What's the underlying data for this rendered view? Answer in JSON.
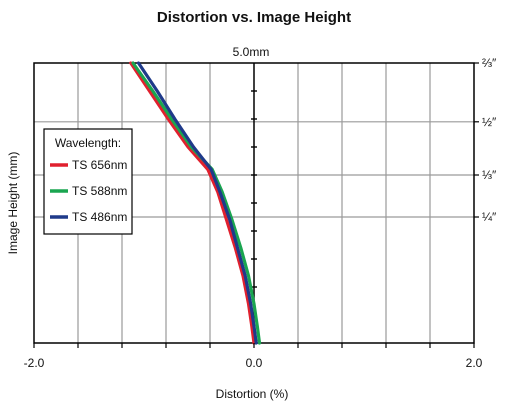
{
  "chart_data": {
    "type": "line",
    "title": "Distortion vs. Image Height",
    "top_label": "5.0mm",
    "xlabel": "Distortion (%)",
    "ylabel": "Image Height (mm)",
    "xlim": [
      -2.0,
      2.0
    ],
    "ylim": [
      0,
      5.0
    ],
    "x_tick_labels": [
      {
        "value": -2.0,
        "label": "-2.0"
      },
      {
        "value": 0.0,
        "label": "0.0"
      },
      {
        "value": 2.0,
        "label": "2.0"
      }
    ],
    "right_tick_labels": [
      {
        "value": 5.0,
        "label": "⅔″"
      },
      {
        "value": 3.95,
        "label": "½″"
      },
      {
        "value": 3.0,
        "label": "⅓″"
      },
      {
        "value": 2.25,
        "label": "¼″"
      }
    ],
    "grid": true,
    "legend": {
      "title": "Wavelength:",
      "placement": "left"
    },
    "series": [
      {
        "name": "TS 656nm",
        "color": "#e0202e",
        "points": [
          [
            -1.12,
            5.0
          ],
          [
            -0.95,
            4.5
          ],
          [
            -0.78,
            4.0
          ],
          [
            -0.6,
            3.5
          ],
          [
            -0.42,
            3.1
          ],
          [
            -0.33,
            2.7
          ],
          [
            -0.25,
            2.2
          ],
          [
            -0.17,
            1.7
          ],
          [
            -0.1,
            1.2
          ],
          [
            -0.05,
            0.7
          ],
          [
            -0.02,
            0.3
          ],
          [
            0.0,
            0.0
          ]
        ]
      },
      {
        "name": "TS 588nm",
        "color": "#1aa550",
        "points": [
          [
            -1.1,
            5.0
          ],
          [
            -0.92,
            4.5
          ],
          [
            -0.75,
            4.0
          ],
          [
            -0.57,
            3.5
          ],
          [
            -0.38,
            3.1
          ],
          [
            -0.29,
            2.7
          ],
          [
            -0.2,
            2.2
          ],
          [
            -0.12,
            1.7
          ],
          [
            -0.05,
            1.2
          ],
          [
            0.0,
            0.7
          ],
          [
            0.03,
            0.3
          ],
          [
            0.05,
            0.0
          ]
        ]
      },
      {
        "name": "TS 486nm",
        "color": "#1f3a8a",
        "points": [
          [
            -1.05,
            5.0
          ],
          [
            -0.88,
            4.5
          ],
          [
            -0.72,
            4.0
          ],
          [
            -0.55,
            3.5
          ],
          [
            -0.39,
            3.1
          ],
          [
            -0.31,
            2.7
          ],
          [
            -0.22,
            2.2
          ],
          [
            -0.15,
            1.7
          ],
          [
            -0.08,
            1.2
          ],
          [
            -0.03,
            0.7
          ],
          [
            0.0,
            0.3
          ],
          [
            0.02,
            0.0
          ]
        ]
      }
    ]
  }
}
